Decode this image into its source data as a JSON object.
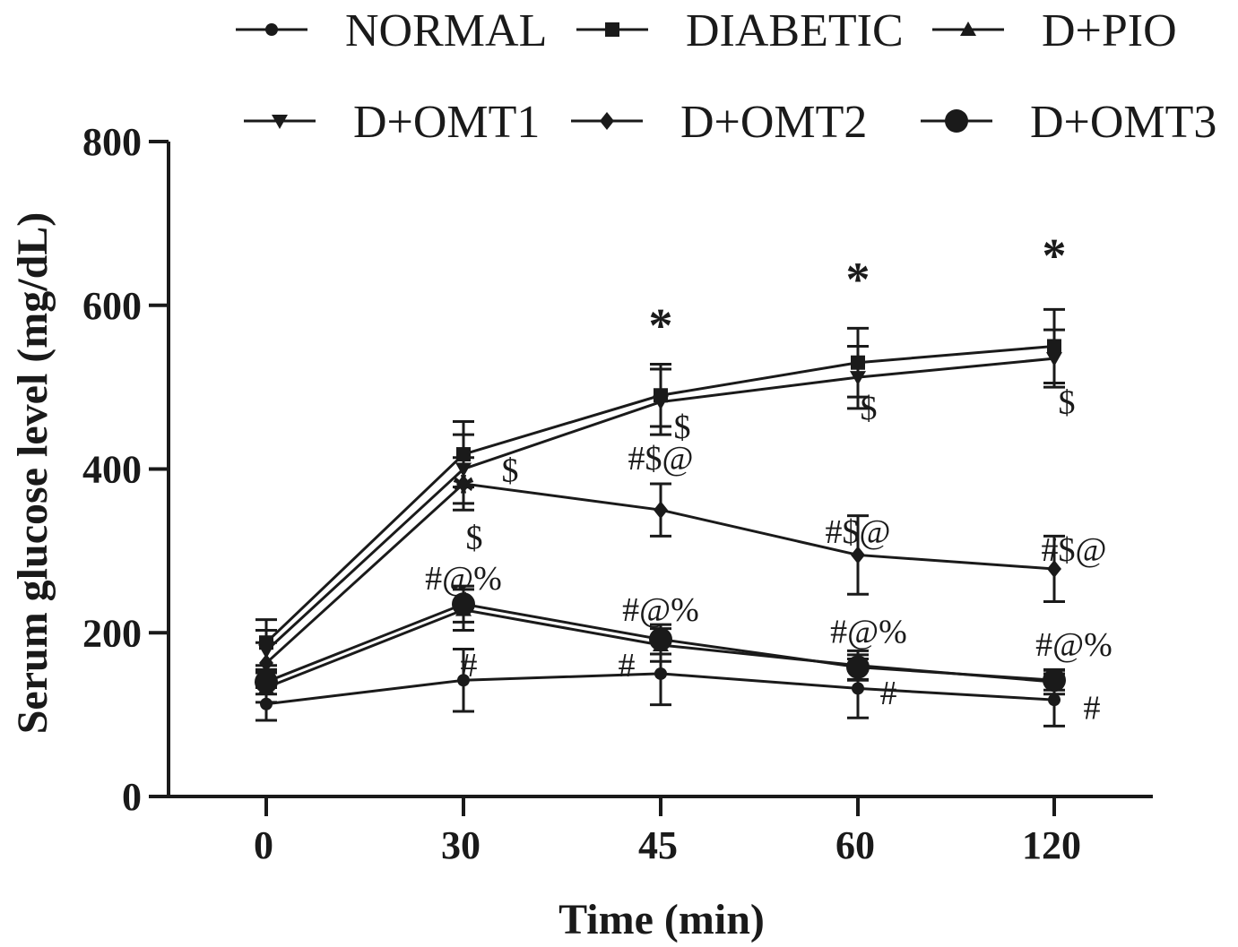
{
  "chart_data": {
    "type": "line",
    "title": "",
    "xlabel": "Time (min)",
    "ylabel": "Serum glucose level (mg/dL)",
    "categories": [
      "0",
      "30",
      "45",
      "60",
      "120"
    ],
    "ylim": [
      0,
      800
    ],
    "yticks": [
      0,
      200,
      400,
      600,
      800
    ],
    "grid": false,
    "legend_position": "top",
    "series": [
      {
        "name": "NORMAL",
        "marker": "small-circle",
        "values": [
          113,
          142,
          150,
          132,
          118
        ],
        "error": [
          20,
          38,
          38,
          36,
          32
        ]
      },
      {
        "name": "DIABETIC",
        "marker": "square",
        "values": [
          188,
          418,
          490,
          530,
          550
        ],
        "error": [
          28,
          40,
          38,
          42,
          45
        ]
      },
      {
        "name": "D+PIO",
        "marker": "triangle-up",
        "values": [
          133,
          228,
          185,
          160,
          140
        ],
        "error": [
          18,
          25,
          20,
          18,
          15
        ]
      },
      {
        "name": "D+OMT1",
        "marker": "triangle-down",
        "values": [
          178,
          400,
          482,
          512,
          535
        ],
        "error": [
          25,
          42,
          40,
          38,
          35
        ]
      },
      {
        "name": "D+OMT2",
        "marker": "diamond",
        "values": [
          163,
          382,
          350,
          295,
          278
        ],
        "error": [
          25,
          32,
          32,
          48,
          40
        ]
      },
      {
        "name": "D+OMT3",
        "marker": "big-circle",
        "values": [
          140,
          235,
          192,
          158,
          142
        ],
        "error": [
          15,
          22,
          18,
          15,
          12
        ]
      }
    ],
    "annotations": [
      {
        "text": "*",
        "x": "30",
        "y": 393,
        "kind": "star"
      },
      {
        "text": "*",
        "x": "45",
        "y": 595,
        "kind": "star"
      },
      {
        "text": "*",
        "x": "60",
        "y": 651,
        "kind": "star"
      },
      {
        "text": "*",
        "x": "120",
        "y": 680,
        "kind": "star"
      },
      {
        "text": "$",
        "x": "30",
        "y": 400,
        "dx": 52,
        "kind": "mark"
      },
      {
        "text": "$",
        "x": "30",
        "y": 318,
        "dx": 12,
        "kind": "mark"
      },
      {
        "text": "$",
        "x": "45",
        "y": 453,
        "dx": 24,
        "kind": "mark"
      },
      {
        "text": "$",
        "x": "60",
        "y": 476,
        "dx": 12,
        "kind": "mark"
      },
      {
        "text": "$",
        "x": "120",
        "y": 483,
        "dx": 14,
        "kind": "mark"
      },
      {
        "text": "#$@",
        "x": "45",
        "y": 415,
        "kind": "mark"
      },
      {
        "text": "#$@",
        "x": "60",
        "y": 325,
        "kind": "mark"
      },
      {
        "text": "#$@",
        "x": "120",
        "y": 303,
        "dx": 22,
        "kind": "mark"
      },
      {
        "text": "#@%",
        "x": "30",
        "y": 268,
        "kind": "mark"
      },
      {
        "text": "#@%",
        "x": "45",
        "y": 230,
        "kind": "mark"
      },
      {
        "text": "#@%",
        "x": "60",
        "y": 203,
        "dx": 12,
        "kind": "mark"
      },
      {
        "text": "#@%",
        "x": "120",
        "y": 187,
        "dx": 22,
        "kind": "mark"
      },
      {
        "text": "#",
        "x": "30",
        "y": 162,
        "dx": 6,
        "kind": "mark"
      },
      {
        "text": "#",
        "x": "45",
        "y": 162,
        "dx": -38,
        "kind": "mark"
      },
      {
        "text": "#",
        "x": "60",
        "y": 128,
        "dx": 34,
        "kind": "mark"
      },
      {
        "text": "#",
        "x": "120",
        "y": 110,
        "dx": 42,
        "kind": "mark"
      }
    ]
  }
}
